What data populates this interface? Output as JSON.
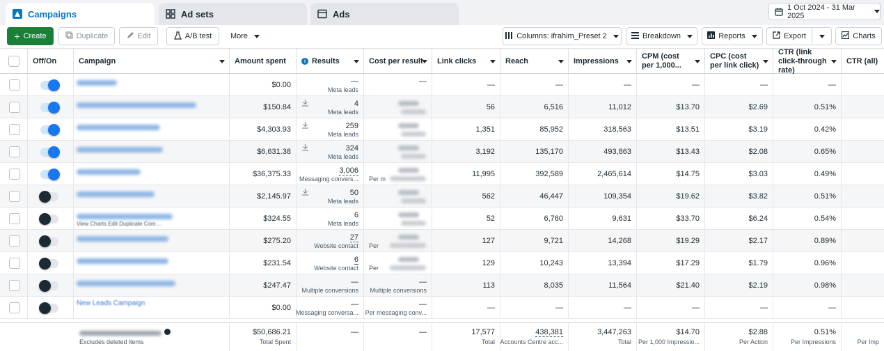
{
  "tabs": [
    {
      "label": "Campaigns",
      "icon": "campaigns-icon",
      "active": true
    },
    {
      "label": "Ad sets",
      "icon": "grid-icon",
      "active": false
    },
    {
      "label": "Ads",
      "icon": "ad-icon",
      "active": false
    }
  ],
  "date_range": "1 Oct 2024 - 31 Mar 2025",
  "toolbar": {
    "create": "Create",
    "duplicate": "Duplicate",
    "edit": "Edit",
    "ab_test": "A/B test",
    "more": "More",
    "columns": "Columns: ifrahim_Preset 2",
    "breakdown": "Breakdown",
    "reports": "Reports",
    "export": "Export",
    "charts": "Charts"
  },
  "columns": {
    "onoff": "Off/On",
    "campaign": "Campaign",
    "amount_spent": "Amount spent",
    "results": "Results",
    "cost_per_result": "Cost per result",
    "link_clicks": "Link clicks",
    "reach": "Reach",
    "impressions": "Impressions",
    "cpm": "CPM (cost per 1,000...",
    "cpc": "CPC (cost per link click)",
    "ctr_link": "CTR (link click-through rate)",
    "ctr_all": "CTR (all)"
  },
  "rows": [
    {
      "on": true,
      "spent": "$0.00",
      "results": "—",
      "results_sub": "Meta leads",
      "cpr": "—",
      "cpr_sub": "",
      "clicks": "—",
      "reach": "—",
      "impr": "—",
      "cpm": "—",
      "cpc": "—",
      "ctr": "—"
    },
    {
      "on": true,
      "spent": "$150.84",
      "results": "4",
      "results_sub": "Meta leads",
      "cpr": "",
      "cpr_sub": "",
      "clicks": "56",
      "reach": "6,516",
      "impr": "11,012",
      "cpm": "$13.70",
      "cpc": "$2.69",
      "ctr": "0.51%"
    },
    {
      "on": true,
      "spent": "$4,303.93",
      "results": "259",
      "results_sub": "Meta leads",
      "cpr": "",
      "cpr_sub": "",
      "clicks": "1,351",
      "reach": "85,952",
      "impr": "318,563",
      "cpm": "$13.51",
      "cpc": "$3.19",
      "ctr": "0.42%"
    },
    {
      "on": true,
      "spent": "$6,631.38",
      "results": "324",
      "results_sub": "Meta leads",
      "cpr": "",
      "cpr_sub": "",
      "clicks": "3,192",
      "reach": "135,170",
      "impr": "493,863",
      "cpm": "$13.43",
      "cpc": "$2.08",
      "ctr": "0.65%"
    },
    {
      "on": true,
      "spent": "$36,375.33",
      "results": "3,006",
      "results_sub": "Messaging convers...",
      "cpr": "",
      "cpr_sub": "Per m",
      "clicks": "11,995",
      "reach": "392,589",
      "impr": "2,465,614",
      "cpm": "$14.75",
      "cpc": "$3.03",
      "ctr": "0.49%"
    },
    {
      "on": false,
      "spent": "$2,145.97",
      "results": "50",
      "results_sub": "Meta leads",
      "cpr": "",
      "cpr_sub": "",
      "clicks": "562",
      "reach": "46,447",
      "impr": "109,354",
      "cpm": "$19.62",
      "cpc": "$3.82",
      "ctr": "0.51%"
    },
    {
      "on": false,
      "spent": "$324.55",
      "results": "6",
      "results_sub": "Meta leads",
      "cpr": "",
      "cpr_sub": "",
      "clicks": "52",
      "reach": "6,760",
      "impr": "9,631",
      "cpm": "$33.70",
      "cpc": "$6.24",
      "ctr": "0.54%"
    },
    {
      "on": false,
      "spent": "$275.20",
      "results": "27",
      "results_sub": "Website contact",
      "cpr": "",
      "cpr_sub": "Per",
      "clicks": "127",
      "reach": "9,721",
      "impr": "14,268",
      "cpm": "$19.29",
      "cpc": "$2.17",
      "ctr": "0.89%"
    },
    {
      "on": false,
      "spent": "$231.54",
      "results": "6",
      "results_sub": "Website contact",
      "cpr": "",
      "cpr_sub": "Per",
      "clicks": "129",
      "reach": "10,243",
      "impr": "13,394",
      "cpm": "$17.29",
      "cpc": "$1.79",
      "ctr": "0.96%"
    },
    {
      "on": false,
      "spent": "$247.47",
      "results": "—",
      "results_sub": "Multiple conversions",
      "cpr": "—",
      "cpr_sub": "Multiple conversions",
      "clicks": "113",
      "reach": "8,035",
      "impr": "11,564",
      "cpm": "$21.40",
      "cpc": "$2.19",
      "ctr": "0.98%"
    },
    {
      "on": false,
      "spent": "$0.00",
      "results": "—",
      "results_sub": "Messaging conversa...",
      "cpr": "—",
      "cpr_sub": "Per messaging conv...",
      "clicks": "—",
      "reach": "—",
      "impr": "—",
      "cpm": "—",
      "cpc": "—",
      "ctr": "—"
    }
  ],
  "row_actions": [
    "View Charts",
    "Edit",
    "Duplicate",
    "Com",
    "..."
  ],
  "visible_campaign_names": [
    "New Leads Campaign"
  ],
  "footer": {
    "excludes": "Excludes deleted items",
    "spent": "$50,686.21",
    "spent_sub": "Total Spent",
    "results": "—",
    "cpr": "—",
    "clicks": "17,577",
    "clicks_sub": "Total",
    "reach": "438,381",
    "reach_sub": "Accounts Centre acc...",
    "impr": "3,447,263",
    "impr_sub": "Total",
    "cpm": "$14.70",
    "cpm_sub": "Per 1,000 Impressio...",
    "cpc": "$2.88",
    "cpc_sub": "Per Action",
    "ctr": "0.51%",
    "ctr_sub": "Per Impressions",
    "ctr_all_sub": "Per Imp"
  },
  "colors": {
    "accent": "#0a78be",
    "create": "#1a7f37",
    "toggle_on": "#1877f2"
  }
}
